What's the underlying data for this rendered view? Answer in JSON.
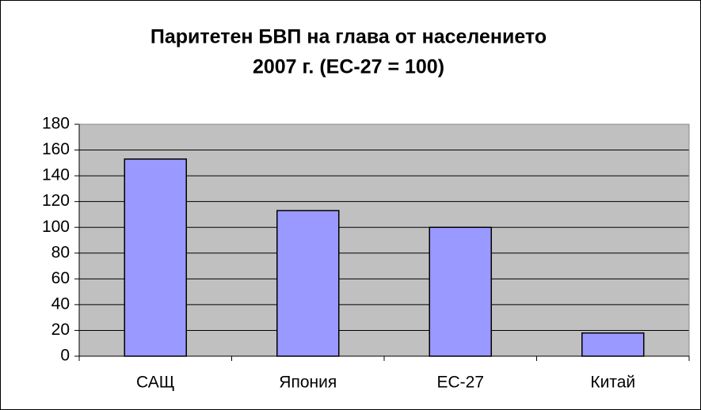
{
  "chart_data": {
    "type": "bar",
    "title": [
      "Паритетен БВП на глава от населението",
      "2007 г. (ЕС-27 = 100)"
    ],
    "categories": [
      "САЩ",
      "Япония",
      "ЕС-27",
      "Китай"
    ],
    "values": [
      153,
      113,
      100,
      18
    ],
    "color": "#9999ff",
    "ylim": [
      0,
      180
    ],
    "yticks": [
      0,
      20,
      40,
      60,
      80,
      100,
      120,
      140,
      160,
      180
    ],
    "grid": true
  }
}
